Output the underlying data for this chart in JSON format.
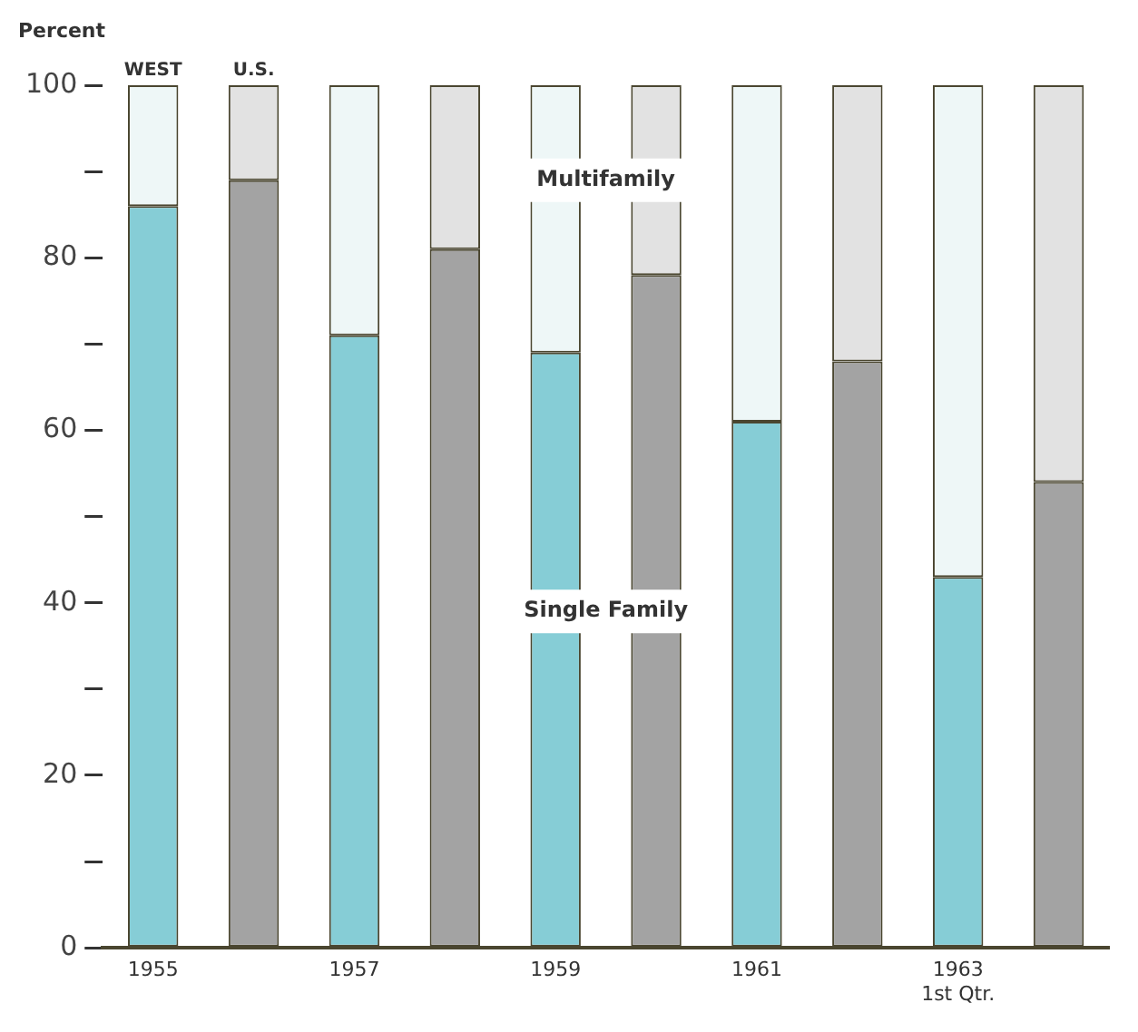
{
  "chart_data": {
    "type": "bar",
    "stacked": true,
    "ylabel": "Percent",
    "categories": [
      "1955",
      null,
      "1957",
      null,
      "1959",
      null,
      "1961",
      null,
      "1963\n1st Qtr.",
      null
    ],
    "series": [
      {
        "name": "Single Family",
        "colors": [
          "#86cdd6",
          "#a3a3a3",
          "#86cdd6",
          "#a3a3a3",
          "#86cdd6",
          "#a3a3a3",
          "#86cdd6",
          "#a3a3a3",
          "#86cdd6",
          "#a3a3a3"
        ],
        "values": [
          86,
          89,
          71,
          81,
          69,
          78,
          61,
          68,
          43,
          54
        ]
      },
      {
        "name": "Multifamily",
        "colors": [
          "#eef7f7",
          "#e2e2e2",
          "#eef7f7",
          "#e2e2e2",
          "#eef7f7",
          "#e2e2e2",
          "#eef7f7",
          "#e2e2e2",
          "#eef7f7",
          "#e2e2e2"
        ],
        "values": [
          14,
          11,
          29,
          19,
          31,
          22,
          39,
          32,
          57,
          46
        ]
      }
    ],
    "ylim": [
      0,
      100
    ],
    "yticks": [
      0,
      {
        "value": 10,
        "label": null
      },
      20,
      {
        "value": 30,
        "label": null
      },
      40,
      {
        "value": 50,
        "label": null
      },
      60,
      {
        "value": 70,
        "label": null
      },
      80,
      {
        "value": 90,
        "label": null
      },
      100
    ],
    "annotations": [
      "WEST",
      "U.S."
    ],
    "grid": false,
    "legend": false
  }
}
